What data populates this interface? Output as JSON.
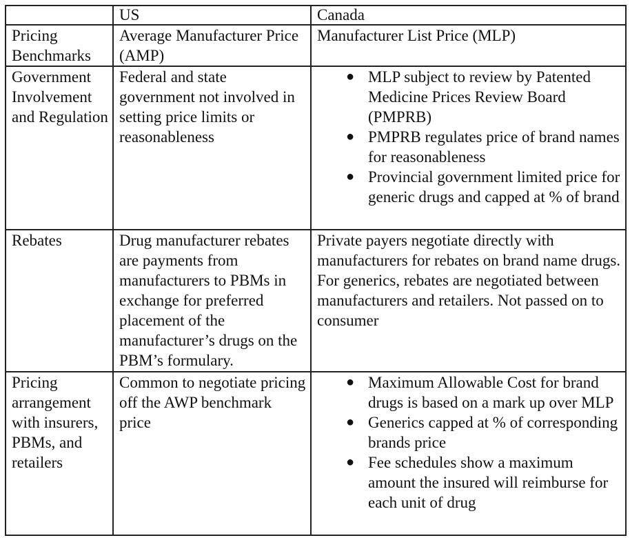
{
  "table": {
    "header": {
      "blank": "",
      "us": "US",
      "canada": "Canada"
    },
    "rows": [
      {
        "label": "Pricing Benchmarks",
        "us": "Average Manufacturer Price (AMP)",
        "canada": "Manufacturer List Price (MLP)"
      },
      {
        "label": "Government Involvement and Regulation",
        "us": "Federal and state government not involved in setting price limits or reasonableness",
        "canada_bullets": [
          "MLP subject to review by Patented Medicine Prices Review Board (PMPRB)",
          "PMPRB regulates price of brand names for reasonableness",
          "Provincial government limited price for generic drugs and capped at % of brand"
        ]
      },
      {
        "label": "Rebates",
        "us": "Drug manufacturer rebates are payments from manufacturers to PBMs in exchange for preferred placement of the manufacturer’s drugs on the PBM’s formulary.",
        "canada": "Private payers negotiate directly with manufacturers for rebates on brand name drugs. For generics, rebates are negotiated between manufacturers and retailers. Not passed on to consumer"
      },
      {
        "label": "Pricing arrangement with insurers, PBMs, and retailers",
        "us": "Common to negotiate pricing off the AWP benchmark price",
        "canada_bullets": [
          "Maximum Allowable Cost for brand drugs is based on a mark up over MLP",
          "Generics capped at % of corresponding brands price",
          "Fee schedules show a maximum amount the insured will reimburse for each unit of drug"
        ]
      }
    ],
    "bullet_glyph": "●"
  }
}
